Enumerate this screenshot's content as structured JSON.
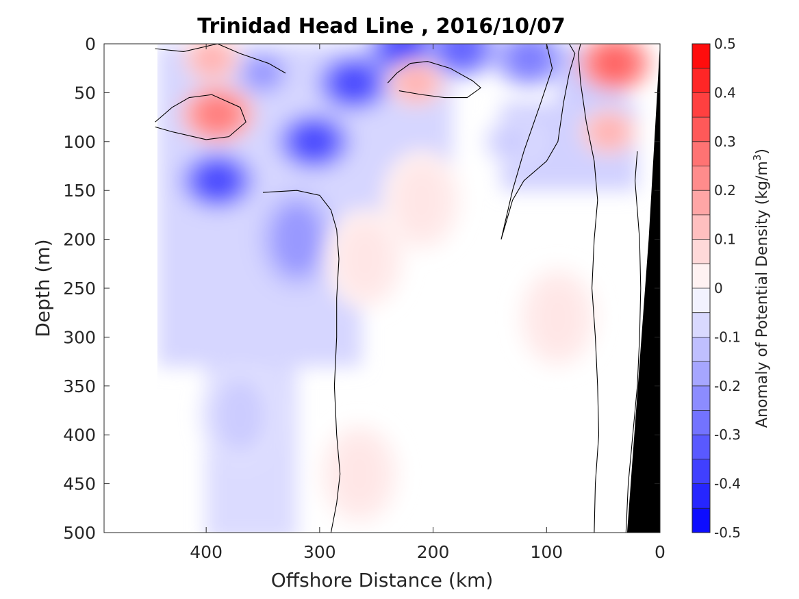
{
  "chart_data": {
    "type": "heatmap",
    "title": "Trinidad Head Line , 2016/10/07",
    "xlabel": "Offshore Distance (km)",
    "ylabel": "Depth (m)",
    "xlim": [
      490,
      0
    ],
    "ylim": [
      0,
      500
    ],
    "x_reversed": true,
    "y_reversed": true,
    "x_ticks": [
      400,
      300,
      200,
      100,
      0
    ],
    "y_ticks": [
      0,
      50,
      100,
      150,
      200,
      250,
      300,
      350,
      400,
      450,
      500
    ],
    "colorbar": {
      "label_main": "Anomaly of Potential Density (kg/m",
      "label_sup": "3",
      "label_close": ")",
      "range": [
        -0.5,
        0.5
      ],
      "step": 0.05,
      "ticks": [
        0.5,
        0.4,
        0.3,
        0.2,
        0.1,
        0,
        -0.1,
        -0.2,
        -0.3,
        -0.4,
        -0.5
      ],
      "tick_labels": [
        "0.5",
        "0.4",
        "0.3",
        "0.2",
        "0.1",
        "0",
        "-0.1",
        "-0.2",
        "-0.3",
        "-0.4",
        "-0.5"
      ],
      "colormap": "blue-white-red",
      "color_negative": "#0000ff",
      "color_zero": "#ffffff",
      "color_positive": "#ff0000"
    },
    "data_extent_km": [
      0,
      443
    ],
    "seafloor_color": "#000000",
    "features": [
      {
        "x": 390,
        "y": 140,
        "value": -0.35
      },
      {
        "x": 305,
        "y": 100,
        "value": -0.35
      },
      {
        "x": 270,
        "y": 40,
        "value": -0.35
      },
      {
        "x": 225,
        "y": 5,
        "value": -0.35
      },
      {
        "x": 175,
        "y": 5,
        "value": -0.3
      },
      {
        "x": 115,
        "y": 15,
        "value": -0.25
      },
      {
        "x": 350,
        "y": 30,
        "value": -0.2
      },
      {
        "x": 320,
        "y": 200,
        "value": -0.2
      },
      {
        "x": 130,
        "y": 100,
        "value": -0.1
      },
      {
        "x": 370,
        "y": 380,
        "value": -0.1
      },
      {
        "x": 390,
        "y": 72,
        "value": 0.25
      },
      {
        "x": 395,
        "y": 15,
        "value": 0.15
      },
      {
        "x": 215,
        "y": 40,
        "value": 0.15
      },
      {
        "x": 40,
        "y": 20,
        "value": 0.3
      },
      {
        "x": 45,
        "y": 90,
        "value": 0.15
      },
      {
        "x": 210,
        "y": 160,
        "value": 0.05
      },
      {
        "x": 90,
        "y": 280,
        "value": 0.05
      },
      {
        "x": 260,
        "y": 220,
        "value": 0.05
      },
      {
        "x": 265,
        "y": 440,
        "value": 0.05
      }
    ]
  }
}
